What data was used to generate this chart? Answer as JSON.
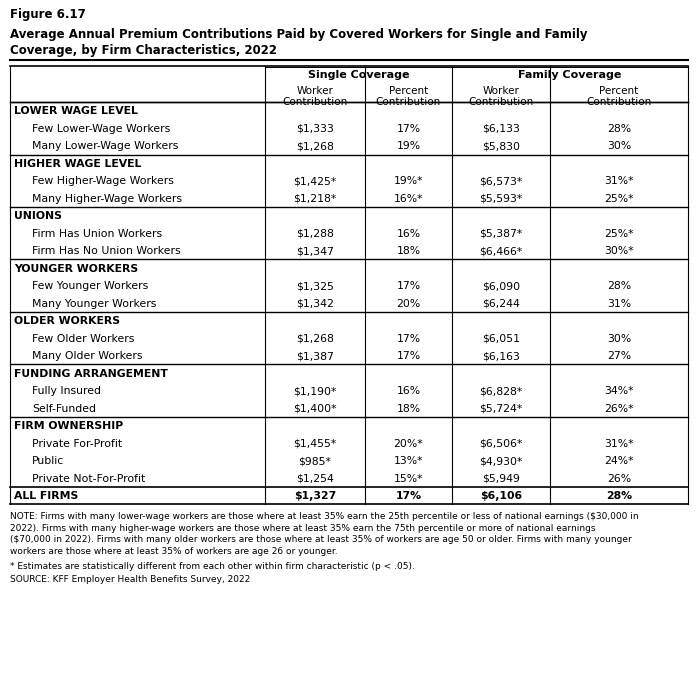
{
  "figure_label": "Figure 6.17",
  "title_line1": "Average Annual Premium Contributions Paid by Covered Workers for Single and Family",
  "title_line2": "Coverage, by Firm Characteristics, 2022",
  "rows": [
    {
      "label": "LOWER WAGE LEVEL",
      "header": true,
      "indent": false,
      "sc_worker": "",
      "sc_pct": "",
      "fc_worker": "",
      "fc_pct": ""
    },
    {
      "label": "  Few Lower-Wage Workers",
      "header": false,
      "indent": true,
      "sc_worker": "$1,333",
      "sc_pct": "17%",
      "fc_worker": "$6,133",
      "fc_pct": "28%"
    },
    {
      "label": "  Many Lower-Wage Workers",
      "header": false,
      "indent": true,
      "sc_worker": "$1,268",
      "sc_pct": "19%",
      "fc_worker": "$5,830",
      "fc_pct": "30%"
    },
    {
      "label": "HIGHER WAGE LEVEL",
      "header": true,
      "indent": false,
      "sc_worker": "",
      "sc_pct": "",
      "fc_worker": "",
      "fc_pct": ""
    },
    {
      "label": "  Few Higher-Wage Workers",
      "header": false,
      "indent": true,
      "sc_worker": "$1,425*",
      "sc_pct": "19%*",
      "fc_worker": "$6,573*",
      "fc_pct": "31%*"
    },
    {
      "label": "  Many Higher-Wage Workers",
      "header": false,
      "indent": true,
      "sc_worker": "$1,218*",
      "sc_pct": "16%*",
      "fc_worker": "$5,593*",
      "fc_pct": "25%*"
    },
    {
      "label": "UNIONS",
      "header": true,
      "indent": false,
      "sc_worker": "",
      "sc_pct": "",
      "fc_worker": "",
      "fc_pct": ""
    },
    {
      "label": "  Firm Has Union Workers",
      "header": false,
      "indent": true,
      "sc_worker": "$1,288",
      "sc_pct": "16%",
      "fc_worker": "$5,387*",
      "fc_pct": "25%*"
    },
    {
      "label": "  Firm Has No Union Workers",
      "header": false,
      "indent": true,
      "sc_worker": "$1,347",
      "sc_pct": "18%",
      "fc_worker": "$6,466*",
      "fc_pct": "30%*"
    },
    {
      "label": "YOUNGER WORKERS",
      "header": true,
      "indent": false,
      "sc_worker": "",
      "sc_pct": "",
      "fc_worker": "",
      "fc_pct": ""
    },
    {
      "label": "  Few Younger Workers",
      "header": false,
      "indent": true,
      "sc_worker": "$1,325",
      "sc_pct": "17%",
      "fc_worker": "$6,090",
      "fc_pct": "28%"
    },
    {
      "label": "  Many Younger Workers",
      "header": false,
      "indent": true,
      "sc_worker": "$1,342",
      "sc_pct": "20%",
      "fc_worker": "$6,244",
      "fc_pct": "31%"
    },
    {
      "label": "OLDER WORKERS",
      "header": true,
      "indent": false,
      "sc_worker": "",
      "sc_pct": "",
      "fc_worker": "",
      "fc_pct": ""
    },
    {
      "label": "  Few Older Workers",
      "header": false,
      "indent": true,
      "sc_worker": "$1,268",
      "sc_pct": "17%",
      "fc_worker": "$6,051",
      "fc_pct": "30%"
    },
    {
      "label": "  Many Older Workers",
      "header": false,
      "indent": true,
      "sc_worker": "$1,387",
      "sc_pct": "17%",
      "fc_worker": "$6,163",
      "fc_pct": "27%"
    },
    {
      "label": "FUNDING ARRANGEMENT",
      "header": true,
      "indent": false,
      "sc_worker": "",
      "sc_pct": "",
      "fc_worker": "",
      "fc_pct": ""
    },
    {
      "label": "  Fully Insured",
      "header": false,
      "indent": true,
      "sc_worker": "$1,190*",
      "sc_pct": "16%",
      "fc_worker": "$6,828*",
      "fc_pct": "34%*"
    },
    {
      "label": "  Self-Funded",
      "header": false,
      "indent": true,
      "sc_worker": "$1,400*",
      "sc_pct": "18%",
      "fc_worker": "$5,724*",
      "fc_pct": "26%*"
    },
    {
      "label": "FIRM OWNERSHIP",
      "header": true,
      "indent": false,
      "sc_worker": "",
      "sc_pct": "",
      "fc_worker": "",
      "fc_pct": ""
    },
    {
      "label": "  Private For-Profit",
      "header": false,
      "indent": true,
      "sc_worker": "$1,455*",
      "sc_pct": "20%*",
      "fc_worker": "$6,506*",
      "fc_pct": "31%*"
    },
    {
      "label": "  Public",
      "header": false,
      "indent": true,
      "sc_worker": "$985*",
      "sc_pct": "13%*",
      "fc_worker": "$4,930*",
      "fc_pct": "24%*"
    },
    {
      "label": "  Private Not-For-Profit",
      "header": false,
      "indent": true,
      "sc_worker": "$1,254",
      "sc_pct": "15%*",
      "fc_worker": "$5,949",
      "fc_pct": "26%"
    },
    {
      "label": "ALL FIRMS",
      "header": false,
      "indent": false,
      "bold": true,
      "sc_worker": "$1,327",
      "sc_pct": "17%",
      "fc_worker": "$6,106",
      "fc_pct": "28%"
    }
  ],
  "note_lines": [
    "NOTE: Firms with many lower-wage workers are those where at least 35% earn the 25th percentile or less of national earnings ($30,000 in",
    "2022). Firms with many higher-wage workers are those where at least 35% earn the 75th percentile or more of national earnings",
    "($70,000 in 2022). Firms with many older workers are those where at least 35% of workers are age 50 or older. Firms with many younger",
    "workers are those where at least 35% of workers are age 26 or younger."
  ],
  "asterisk_note": "* Estimates are statistically different from each other within firm characteristic (p < .05).",
  "source": "SOURCE: KFF Employer Health Benefits Survey, 2022"
}
